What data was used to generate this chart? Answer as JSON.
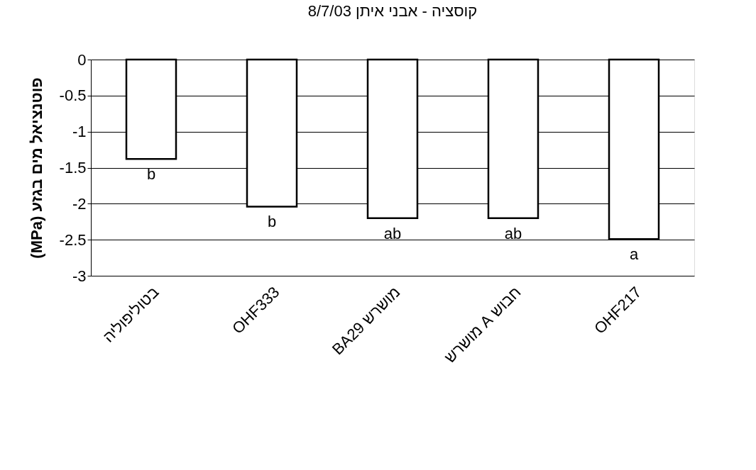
{
  "chart_data": {
    "type": "bar",
    "title": "קוסציה - אבני איתן 8/7/03",
    "ylabel": "פוטנציאל מים בגזע (MPa)",
    "categories": [
      "בטוליפוליה",
      "OHF333",
      "מושרש BA29",
      "חבוש A מושרש",
      "OHF217"
    ],
    "values": [
      -1.38,
      -2.04,
      -2.2,
      -2.2,
      -2.49
    ],
    "color": "#ffffff",
    "ylim": [
      -3,
      0
    ],
    "yticks": [
      0,
      -0.5,
      -1,
      -1.5,
      -2,
      -2.5,
      -3
    ],
    "grid": "y",
    "annotations": [
      "b",
      "b",
      "ab",
      "ab",
      "a"
    ]
  }
}
